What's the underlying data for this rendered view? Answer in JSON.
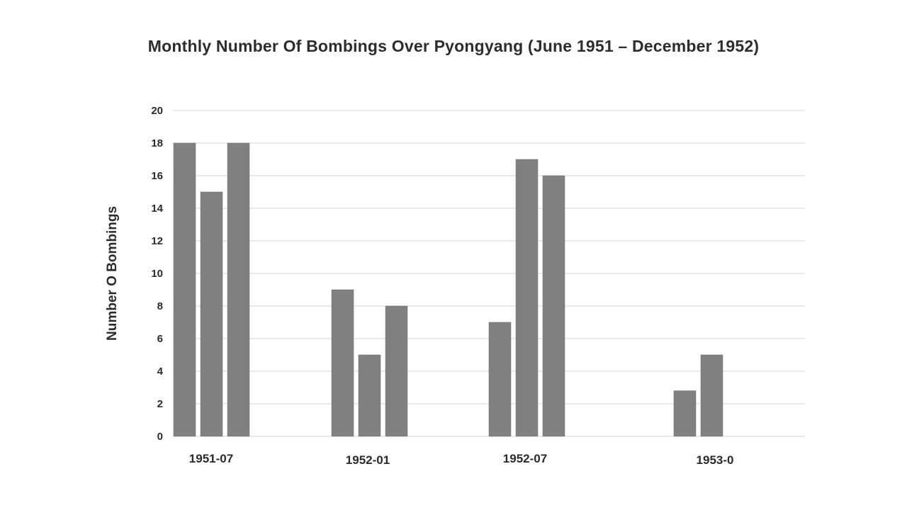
{
  "chart_data": {
    "type": "bar",
    "title": "Monthly Number Of Bombings Over Pyongyang (June 1951 – December 1952)",
    "xlabel": "",
    "ylabel": "Number O Bombings",
    "ylim": [
      0,
      20
    ],
    "yticks": [
      0,
      2,
      4,
      6,
      8,
      10,
      12,
      14,
      16,
      18,
      20
    ],
    "grid": true,
    "bar_color": "#808080",
    "x_tick_labels": [
      "1951-07",
      "1952-01",
      "1952-07",
      "1953-0"
    ],
    "groups": [
      {
        "label": "1951-07",
        "values": [
          18,
          15,
          18
        ]
      },
      {
        "label": "1952-01",
        "values": [
          9,
          5,
          8
        ]
      },
      {
        "label": "1952-07",
        "values": [
          7,
          17,
          16
        ]
      },
      {
        "label": "1953-0",
        "values": [
          2.8,
          5
        ]
      }
    ]
  }
}
